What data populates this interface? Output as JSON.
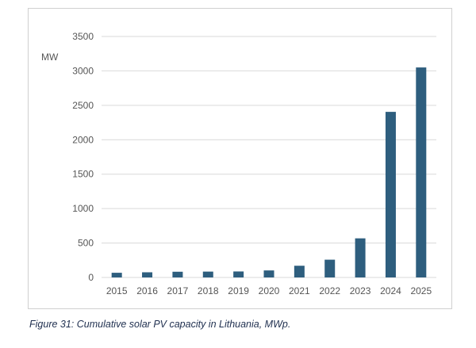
{
  "chart_data": {
    "type": "bar",
    "categories": [
      "2015",
      "2016",
      "2017",
      "2018",
      "2019",
      "2020",
      "2021",
      "2022",
      "2023",
      "2024",
      "2025"
    ],
    "values": [
      68,
      75,
      83,
      85,
      87,
      102,
      170,
      258,
      568,
      2405,
      3050
    ],
    "ylabel": "MW",
    "ylim": [
      0,
      3500
    ],
    "yticks": [
      0,
      500,
      1000,
      1500,
      2000,
      2500,
      3000,
      3500
    ],
    "grid": true,
    "bar_color": "#2e5e7e"
  },
  "caption": "Figure 31: Cumulative solar PV capacity in Lithuania, MWp."
}
